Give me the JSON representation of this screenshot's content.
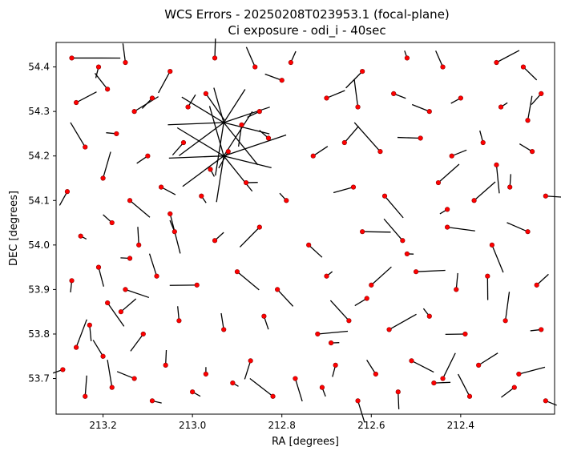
{
  "chart_data": {
    "type": "scatter",
    "title": "WCS Errors - 20250208T023953.1 (focal-plane)",
    "subtitle": "Ci exposure - odi_i - 40sec",
    "xlabel": "RA [degrees]",
    "ylabel": "DEC [degrees]",
    "xlim": [
      213.305,
      212.19
    ],
    "ylim": [
      53.62,
      54.455
    ],
    "x_inverted": true,
    "xticks": [
      "213.2",
      "213.0",
      "212.8",
      "212.6",
      "212.4"
    ],
    "yticks": [
      "53.7",
      "53.8",
      "53.9",
      "54.0",
      "54.1",
      "54.2",
      "54.3",
      "54.4"
    ],
    "grid": false,
    "legend": "none",
    "colors": {
      "points": "#ff0000",
      "point_edge": "#8b0000",
      "vectors": "#000000"
    },
    "series": [
      {
        "x": [
          213.27,
          213.21,
          213.15,
          213.05,
          212.95,
          212.86,
          212.78,
          212.62,
          212.52,
          212.44,
          212.32,
          212.26,
          213.26,
          213.19,
          213.13,
          213.09,
          213.01,
          212.97,
          212.85,
          212.7,
          212.63,
          212.55,
          212.47,
          212.4,
          212.31,
          212.22,
          213.24,
          213.17,
          213.1,
          213.02,
          212.92,
          212.83,
          212.73,
          212.66,
          212.58,
          212.49,
          212.42,
          212.35,
          212.24,
          213.28,
          213.2,
          213.14,
          213.07,
          212.98,
          212.88,
          212.79,
          212.64,
          212.57,
          212.45,
          212.37,
          212.29,
          212.21,
          213.25,
          213.18,
          213.12,
          213.04,
          212.95,
          212.85,
          212.74,
          212.62,
          212.53,
          212.43,
          212.33,
          212.25,
          213.27,
          213.21,
          213.15,
          213.08,
          212.99,
          212.9,
          212.81,
          212.7,
          212.6,
          212.5,
          212.41,
          212.34,
          212.23,
          213.23,
          213.16,
          213.11,
          213.03,
          212.93,
          212.84,
          212.72,
          212.65,
          212.56,
          212.47,
          212.39,
          212.3,
          212.22,
          213.29,
          213.2,
          213.13,
          213.06,
          212.97,
          212.87,
          212.77,
          212.68,
          212.59,
          212.51,
          212.44,
          212.36,
          212.27,
          213.24,
          213.18,
          213.09,
          213.0,
          212.91,
          212.82,
          212.71,
          212.63,
          212.54,
          212.46,
          212.38,
          212.28,
          212.21,
          213.26,
          213.19,
          213.14,
          213.05,
          212.96,
          212.89,
          212.8,
          212.69,
          212.61,
          212.52,
          212.43,
          212.32,
          212.25
        ],
        "y": [
          54.42,
          54.4,
          54.41,
          54.39,
          54.42,
          54.4,
          54.41,
          54.39,
          54.42,
          54.4,
          54.41,
          54.4,
          54.32,
          54.35,
          54.3,
          54.33,
          54.31,
          54.34,
          54.3,
          54.33,
          54.31,
          54.34,
          54.3,
          54.33,
          54.31,
          54.34,
          54.22,
          54.25,
          54.2,
          54.23,
          54.21,
          54.24,
          54.2,
          54.23,
          54.21,
          54.24,
          54.2,
          54.23,
          54.21,
          54.12,
          54.15,
          54.1,
          54.13,
          54.11,
          54.14,
          54.1,
          54.13,
          54.11,
          54.14,
          54.1,
          54.13,
          54.11,
          54.02,
          54.05,
          54.0,
          54.03,
          54.01,
          54.04,
          54.0,
          54.03,
          54.01,
          54.04,
          54.0,
          54.03,
          53.92,
          53.95,
          53.9,
          53.93,
          53.91,
          53.94,
          53.9,
          53.93,
          53.91,
          53.94,
          53.9,
          53.93,
          53.91,
          53.82,
          53.85,
          53.8,
          53.83,
          53.81,
          53.84,
          53.8,
          53.83,
          53.81,
          53.84,
          53.8,
          53.83,
          53.81,
          53.72,
          53.75,
          53.7,
          53.73,
          53.71,
          53.74,
          53.7,
          53.73,
          53.71,
          53.74,
          53.7,
          53.73,
          53.71,
          53.66,
          53.68,
          53.65,
          53.67,
          53.69,
          53.66,
          53.68,
          53.65,
          53.67,
          53.69,
          53.66,
          53.68,
          53.65,
          53.77,
          53.87,
          53.97,
          54.07,
          54.17,
          54.27,
          54.37,
          53.78,
          53.88,
          53.98,
          54.08,
          54.18,
          54.28
        ]
      }
    ]
  }
}
